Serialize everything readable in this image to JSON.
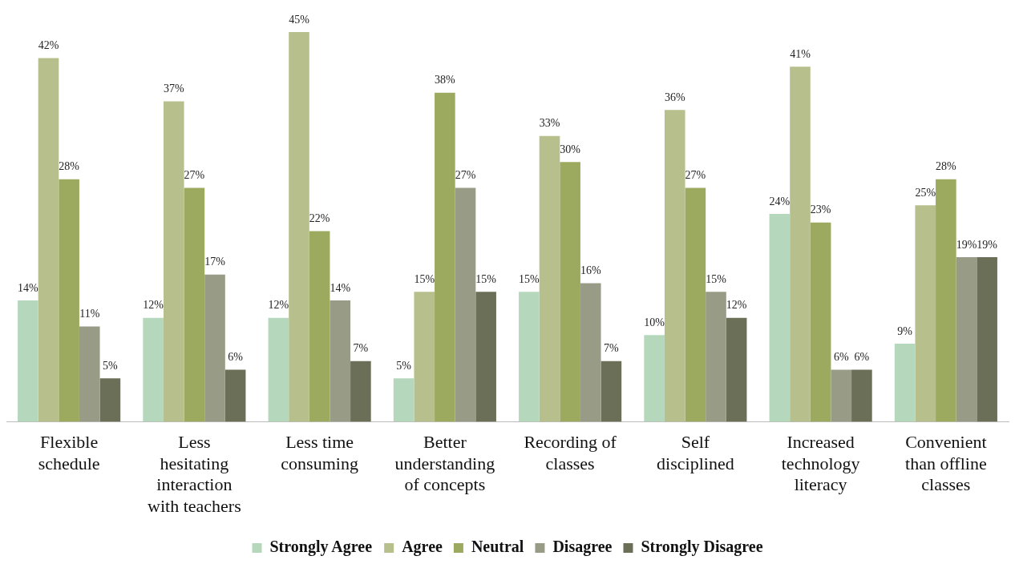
{
  "chart_data": {
    "type": "bar",
    "categories": [
      "Flexible schedule",
      "Less hesitating interaction with teachers",
      "Less time consuming",
      "Better understanding of concepts",
      "Recording of classes",
      "Self disciplined",
      "Increased technology literacy",
      "Convenient than offline classes"
    ],
    "legend": "bottom",
    "grid": false,
    "series": [
      {
        "name": "Strongly Agree",
        "color": "#b5d8bd",
        "values": [
          14,
          12,
          12,
          5,
          15,
          10,
          24,
          9
        ],
        "value_labels": [
          "14%",
          "12%",
          "12%",
          "5%",
          "15%",
          "10%",
          "24%",
          "9%"
        ]
      },
      {
        "name": "Agree",
        "color": "#b7c08c",
        "values": [
          42,
          37,
          45,
          15,
          33,
          36,
          41,
          25
        ],
        "value_labels": [
          "42%",
          "37%",
          "45%",
          "15%",
          "33%",
          "36%",
          "41%",
          "25%"
        ]
      },
      {
        "name": "Neutral",
        "color": "#9caa60",
        "values": [
          28,
          27,
          22,
          38,
          30,
          27,
          23,
          28
        ],
        "value_labels": [
          "28%",
          "27%",
          "22%",
          "38%",
          "30%",
          "27%",
          "23%",
          "28%"
        ]
      },
      {
        "name": "Disagree",
        "color": "#989c86",
        "values": [
          11,
          17,
          14,
          27,
          16,
          15,
          6,
          19
        ],
        "value_labels": [
          "11%",
          "17%",
          "14%",
          "27%",
          "16%",
          "15%",
          "6%",
          "19%"
        ]
      },
      {
        "name": "Strongly Disagree",
        "color": "#6b6f57",
        "values": [
          5,
          6,
          7,
          15,
          7,
          12,
          6,
          19
        ],
        "value_labels": [
          "5%",
          "6%",
          "7%",
          "15%",
          "7%",
          "12%",
          "6%",
          "19%"
        ]
      }
    ]
  }
}
